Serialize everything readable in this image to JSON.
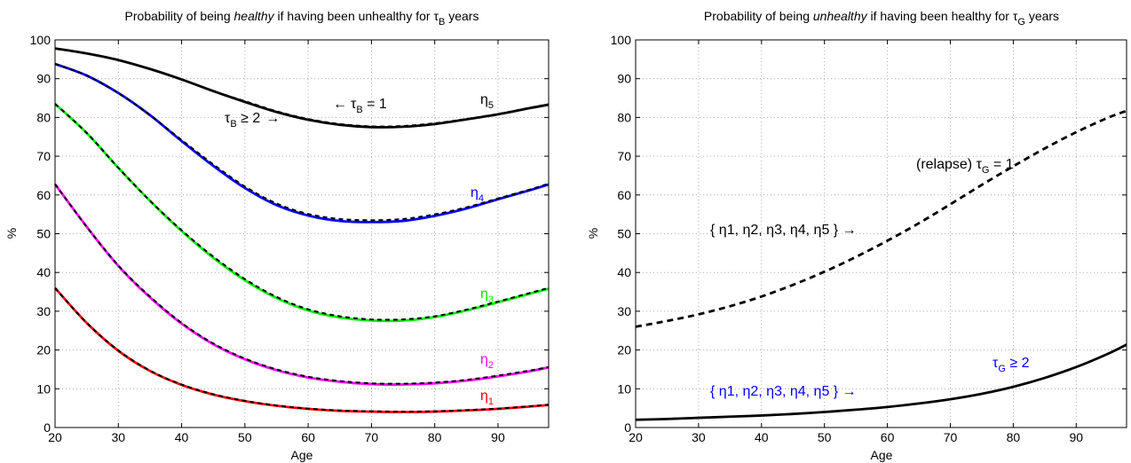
{
  "chart_data": [
    {
      "type": "line",
      "title": {
        "pre": "Probability of being ",
        "em": "healthy",
        "mid": " if having been unhealthy for ",
        "greek": "τ",
        "sub": "B",
        "post": " years"
      },
      "xlabel": "Age",
      "ylabel": "%",
      "xlim": [
        20,
        98
      ],
      "ylim": [
        0,
        100
      ],
      "xticks": [
        20,
        30,
        40,
        50,
        60,
        70,
        80,
        90
      ],
      "yticks": [
        0,
        10,
        20,
        30,
        40,
        50,
        60,
        70,
        80,
        90,
        100
      ],
      "grid": true,
      "x": [
        20,
        25,
        30,
        35,
        40,
        45,
        50,
        55,
        60,
        65,
        70,
        75,
        80,
        85,
        90,
        95,
        98
      ],
      "series": [
        {
          "label": "η",
          "label_sub": "5",
          "color": "#000000",
          "solid": [
            97.8,
            96.5,
            94.8,
            92.5,
            89.8,
            86.8,
            84.0,
            81.4,
            79.4,
            78.1,
            77.5,
            77.6,
            78.3,
            79.5,
            80.8,
            82.4,
            83.3
          ],
          "dashed": [
            97.8,
            96.5,
            94.8,
            92.5,
            89.8,
            86.8,
            84.2,
            81.6,
            79.6,
            78.3,
            77.7,
            77.8,
            78.5,
            79.6,
            80.9,
            82.5,
            83.4
          ]
        },
        {
          "label": "η",
          "label_sub": "4",
          "color": "#0000ff",
          "solid": [
            93.8,
            90.8,
            86.3,
            80.6,
            73.9,
            67.5,
            61.8,
            57.4,
            54.7,
            53.3,
            53.0,
            53.3,
            54.6,
            56.5,
            58.9,
            61.2,
            62.7
          ],
          "dashed": [
            93.8,
            90.8,
            86.3,
            80.6,
            74.2,
            67.9,
            62.2,
            57.8,
            55.1,
            53.8,
            53.5,
            53.8,
            55.0,
            56.8,
            59.1,
            61.4,
            62.9
          ]
        },
        {
          "label": "η",
          "label_sub": "3",
          "color": "#00ee00",
          "solid": [
            83.5,
            76.0,
            67.0,
            58.5,
            50.7,
            43.8,
            38.0,
            33.4,
            30.2,
            28.4,
            27.6,
            27.6,
            28.5,
            30.2,
            32.3,
            34.5,
            35.8
          ],
          "dashed": [
            83.5,
            76.0,
            67.0,
            58.5,
            50.9,
            44.1,
            38.3,
            33.7,
            30.5,
            28.7,
            27.9,
            27.9,
            28.7,
            30.4,
            32.5,
            34.7,
            36.0
          ]
        },
        {
          "label": "η",
          "label_sub": "2",
          "color": "#ff00ff",
          "solid": [
            62.8,
            51.8,
            41.7,
            33.6,
            26.8,
            21.5,
            17.6,
            14.8,
            12.9,
            11.8,
            11.2,
            11.1,
            11.4,
            12.1,
            13.2,
            14.5,
            15.5
          ],
          "dashed": [
            62.8,
            51.8,
            41.8,
            33.8,
            27.0,
            21.7,
            17.8,
            15.0,
            13.1,
            12.0,
            11.4,
            11.3,
            11.6,
            12.3,
            13.4,
            14.7,
            15.6
          ]
        },
        {
          "label": "η",
          "label_sub": "1",
          "color": "#ff0000",
          "solid": [
            36.0,
            27.0,
            19.8,
            14.6,
            11.0,
            8.5,
            6.8,
            5.6,
            4.8,
            4.3,
            4.1,
            4.0,
            4.1,
            4.4,
            4.8,
            5.4,
            5.8
          ],
          "dashed": [
            36.0,
            27.0,
            19.9,
            14.7,
            11.1,
            8.6,
            6.9,
            5.7,
            4.9,
            4.4,
            4.2,
            4.1,
            4.2,
            4.5,
            4.9,
            5.5,
            5.9
          ]
        }
      ],
      "annotations": {
        "tau1": {
          "arrow": "←",
          "greek": "τ",
          "sub": "B",
          "text": " = 1"
        },
        "tau2": {
          "greek": "τ",
          "sub": "B",
          "text": " ≥ 2",
          "arrow": "→"
        }
      }
    },
    {
      "type": "line",
      "title": {
        "pre": "Probability of being ",
        "em": "unhealthy",
        "mid": " if having been healthy for ",
        "greek": "τ",
        "sub": "G",
        "post": " years"
      },
      "xlabel": "Age",
      "ylabel": "%",
      "xlim": [
        20,
        98
      ],
      "ylim": [
        0,
        100
      ],
      "xticks": [
        20,
        30,
        40,
        50,
        60,
        70,
        80,
        90
      ],
      "yticks": [
        0,
        10,
        20,
        30,
        40,
        50,
        60,
        70,
        80,
        90,
        100
      ],
      "grid": true,
      "x": [
        20,
        25,
        30,
        35,
        40,
        45,
        50,
        55,
        60,
        65,
        70,
        75,
        80,
        85,
        90,
        95,
        98
      ],
      "series": [
        {
          "name": "τG = 1",
          "style": "dashed",
          "color": "#000000",
          "values": [
            26.0,
            27.5,
            29.2,
            31.3,
            33.8,
            36.8,
            40.2,
            44.0,
            48.2,
            52.7,
            57.6,
            62.6,
            67.4,
            72.0,
            76.2,
            79.9,
            81.7
          ]
        },
        {
          "name": "τG ≥ 2",
          "style": "solid",
          "color": "#000000",
          "values": [
            2.0,
            2.2,
            2.5,
            2.8,
            3.1,
            3.5,
            4.0,
            4.6,
            5.3,
            6.2,
            7.3,
            8.7,
            10.5,
            12.8,
            15.6,
            19.0,
            21.4
          ]
        }
      ],
      "annotations": {
        "relapse": {
          "text": "(relapse) ",
          "greek": "τ",
          "sub": "G",
          "rest": " = 1"
        },
        "set_black": {
          "text": "{ η1, η2, η3, η4, η5 } →",
          "color": "#000000"
        },
        "set_blue": {
          "text": "{ η1, η2, η3, η4, η5 } →",
          "color": "#0000ff"
        },
        "tau2": {
          "greek": "τ",
          "sub": "G",
          "text": " ≥ 2",
          "color": "#0000ff"
        }
      }
    }
  ]
}
